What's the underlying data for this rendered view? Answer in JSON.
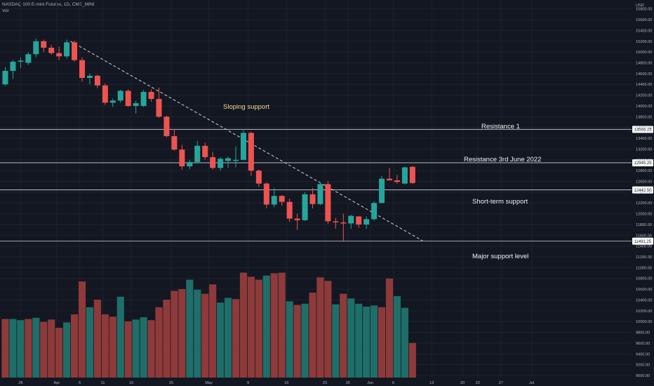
{
  "header": {
    "title": "NASDAQ 100 E-mini Futures, 1D, CME_MINI",
    "indicator": "Vol"
  },
  "axis": {
    "currency": "USD"
  },
  "chart_data": {
    "type": "candlestick",
    "title": "NASDAQ 100 E-mini Futures, 1D, CME_MINI",
    "y_unit": "USD",
    "ylim": [
      9000,
      15900
    ],
    "y_ticks": [
      9000,
      9200,
      9400,
      9600,
      9800,
      10000,
      10200,
      10400,
      10600,
      10800,
      11000,
      11200,
      11400,
      11600,
      11800,
      12000,
      12200,
      12400,
      12600,
      12800,
      13000,
      13200,
      13400,
      13600,
      13800,
      14000,
      14200,
      14400,
      14600,
      14800,
      15000,
      15200,
      15400,
      15600,
      15800
    ],
    "x_labels": [
      {
        "label": "28",
        "index": 2
      },
      {
        "label": "Apr",
        "index": 6.7
      },
      {
        "label": "6",
        "index": 9.7
      },
      {
        "label": "11",
        "index": 12.7
      },
      {
        "label": "15",
        "index": 16.4
      },
      {
        "label": "25",
        "index": 21.6
      },
      {
        "label": "May",
        "index": 26.5
      },
      {
        "label": "9",
        "index": 31.6
      },
      {
        "label": "16",
        "index": 36.6
      },
      {
        "label": "23",
        "index": 41.6
      },
      {
        "label": "26",
        "index": 44.6
      },
      {
        "label": "Jun",
        "index": 47.5
      },
      {
        "label": "6",
        "index": 50.5
      },
      {
        "label": "13",
        "index": 55.5
      },
      {
        "label": "20",
        "index": 59.5
      },
      {
        "label": "22",
        "index": 61.5
      },
      {
        "label": "27",
        "index": 64.5
      },
      {
        "label": "Jul",
        "index": 68.5
      }
    ],
    "candles": [
      {
        "o": 14400,
        "h": 14720,
        "l": 14370,
        "c": 14650
      },
      {
        "o": 14650,
        "h": 14850,
        "l": 14500,
        "c": 14820
      },
      {
        "o": 14820,
        "h": 14900,
        "l": 14700,
        "c": 14840
      },
      {
        "o": 14800,
        "h": 15000,
        "l": 14760,
        "c": 14960
      },
      {
        "o": 14960,
        "h": 15250,
        "l": 14900,
        "c": 15200
      },
      {
        "o": 15200,
        "h": 15230,
        "l": 15000,
        "c": 15080
      },
      {
        "o": 15080,
        "h": 15130,
        "l": 14950,
        "c": 14980
      },
      {
        "o": 14980,
        "h": 15100,
        "l": 14850,
        "c": 14920
      },
      {
        "o": 14920,
        "h": 15230,
        "l": 14880,
        "c": 15180
      },
      {
        "o": 15180,
        "h": 15210,
        "l": 14820,
        "c": 14850
      },
      {
        "o": 14850,
        "h": 14900,
        "l": 14450,
        "c": 14520
      },
      {
        "o": 14520,
        "h": 14600,
        "l": 14400,
        "c": 14560
      },
      {
        "o": 14560,
        "h": 14580,
        "l": 14330,
        "c": 14380
      },
      {
        "o": 14380,
        "h": 14420,
        "l": 14020,
        "c": 14060
      },
      {
        "o": 14060,
        "h": 14140,
        "l": 13980,
        "c": 14100
      },
      {
        "o": 14100,
        "h": 14300,
        "l": 14060,
        "c": 14280
      },
      {
        "o": 14280,
        "h": 14310,
        "l": 13980,
        "c": 14000
      },
      {
        "o": 14000,
        "h": 14100,
        "l": 13860,
        "c": 14050
      },
      {
        "o": 14000,
        "h": 14300,
        "l": 13980,
        "c": 14260
      },
      {
        "o": 14260,
        "h": 14310,
        "l": 14080,
        "c": 14130
      },
      {
        "o": 14130,
        "h": 14340,
        "l": 13780,
        "c": 13800
      },
      {
        "o": 13800,
        "h": 13820,
        "l": 13420,
        "c": 13440
      },
      {
        "o": 13440,
        "h": 13570,
        "l": 13170,
        "c": 13190
      },
      {
        "o": 13190,
        "h": 13280,
        "l": 12820,
        "c": 12880
      },
      {
        "o": 12880,
        "h": 13000,
        "l": 12830,
        "c": 12960
      },
      {
        "o": 12960,
        "h": 13350,
        "l": 12940,
        "c": 13260
      },
      {
        "o": 13260,
        "h": 13320,
        "l": 13000,
        "c": 13050
      },
      {
        "o": 13050,
        "h": 13150,
        "l": 12820,
        "c": 12850
      },
      {
        "o": 12850,
        "h": 13050,
        "l": 12800,
        "c": 13020
      },
      {
        "o": 12980,
        "h": 13060,
        "l": 12850,
        "c": 13030
      },
      {
        "o": 12980,
        "h": 13250,
        "l": 12860,
        "c": 13000
      },
      {
        "o": 13000,
        "h": 13550,
        "l": 12990,
        "c": 13500
      },
      {
        "o": 13500,
        "h": 13520,
        "l": 12700,
        "c": 12800
      },
      {
        "o": 12800,
        "h": 12820,
        "l": 12500,
        "c": 12560
      },
      {
        "o": 12560,
        "h": 12580,
        "l": 12100,
        "c": 12170
      },
      {
        "o": 12170,
        "h": 12480,
        "l": 12120,
        "c": 12330
      },
      {
        "o": 12330,
        "h": 12350,
        "l": 12150,
        "c": 12220
      },
      {
        "o": 12220,
        "h": 12280,
        "l": 11850,
        "c": 11910
      },
      {
        "o": 11910,
        "h": 12000,
        "l": 11700,
        "c": 11880
      },
      {
        "o": 11880,
        "h": 12400,
        "l": 11870,
        "c": 12360
      },
      {
        "o": 12360,
        "h": 12480,
        "l": 12100,
        "c": 12180
      },
      {
        "o": 12180,
        "h": 12580,
        "l": 12160,
        "c": 12550
      },
      {
        "o": 12550,
        "h": 12600,
        "l": 11810,
        "c": 11860
      },
      {
        "o": 11860,
        "h": 11920,
        "l": 11720,
        "c": 11840
      },
      {
        "o": 11840,
        "h": 12000,
        "l": 11480,
        "c": 11820
      },
      {
        "o": 11820,
        "h": 11980,
        "l": 11720,
        "c": 11960
      },
      {
        "o": 11950,
        "h": 11960,
        "l": 11740,
        "c": 11800
      },
      {
        "o": 11800,
        "h": 11950,
        "l": 11720,
        "c": 11900
      },
      {
        "o": 11900,
        "h": 12230,
        "l": 11870,
        "c": 12200
      },
      {
        "o": 12200,
        "h": 12700,
        "l": 12190,
        "c": 12650
      },
      {
        "o": 12650,
        "h": 12850,
        "l": 12620,
        "c": 12620
      },
      {
        "o": 12620,
        "h": 12720,
        "l": 12560,
        "c": 12590
      },
      {
        "o": 12560,
        "h": 12880,
        "l": 12540,
        "c": 12860
      },
      {
        "o": 12870,
        "h": 12890,
        "l": 12550,
        "c": 12570
      }
    ],
    "volume_bars": [
      {
        "v": 10000,
        "up": false
      },
      {
        "v": 10000,
        "up": true
      },
      {
        "v": 9980,
        "up": true
      },
      {
        "v": 10000,
        "up": false
      },
      {
        "v": 10020,
        "up": true
      },
      {
        "v": 9950,
        "up": false
      },
      {
        "v": 9990,
        "up": false
      },
      {
        "v": 9850,
        "up": false
      },
      {
        "v": 9940,
        "up": true
      },
      {
        "v": 10080,
        "up": false
      },
      {
        "v": 10640,
        "up": false
      },
      {
        "v": 10200,
        "up": true
      },
      {
        "v": 10330,
        "up": false
      },
      {
        "v": 10080,
        "up": false
      },
      {
        "v": 10040,
        "up": false
      },
      {
        "v": 10380,
        "up": true
      },
      {
        "v": 9960,
        "up": false
      },
      {
        "v": 9990,
        "up": true
      },
      {
        "v": 10030,
        "up": true
      },
      {
        "v": 9980,
        "up": false
      },
      {
        "v": 10200,
        "up": false
      },
      {
        "v": 10330,
        "up": false
      },
      {
        "v": 10480,
        "up": false
      },
      {
        "v": 10510,
        "up": false
      },
      {
        "v": 10670,
        "up": true
      },
      {
        "v": 10500,
        "up": true
      },
      {
        "v": 10430,
        "up": false
      },
      {
        "v": 10590,
        "up": false
      },
      {
        "v": 10280,
        "up": true
      },
      {
        "v": 10360,
        "up": true
      },
      {
        "v": 10340,
        "up": false
      },
      {
        "v": 10790,
        "up": false
      },
      {
        "v": 10720,
        "up": false
      },
      {
        "v": 10670,
        "up": false
      },
      {
        "v": 10740,
        "up": true
      },
      {
        "v": 10780,
        "up": false
      },
      {
        "v": 10790,
        "up": false
      },
      {
        "v": 10300,
        "up": true
      },
      {
        "v": 10240,
        "up": false
      },
      {
        "v": 10260,
        "up": true
      },
      {
        "v": 10450,
        "up": false
      },
      {
        "v": 10710,
        "up": false
      },
      {
        "v": 10650,
        "up": false
      },
      {
        "v": 10250,
        "up": true
      },
      {
        "v": 10430,
        "up": false
      },
      {
        "v": 10350,
        "up": true
      },
      {
        "v": 10260,
        "up": true
      },
      {
        "v": 10210,
        "up": true
      },
      {
        "v": 10230,
        "up": true
      },
      {
        "v": 10200,
        "up": false
      },
      {
        "v": 10690,
        "up": false
      },
      {
        "v": 10390,
        "up": true
      },
      {
        "v": 10190,
        "up": true
      },
      {
        "v": 9590,
        "up": false
      }
    ],
    "horizontal_levels": [
      {
        "name": "Resistance 1",
        "value": 13565.25,
        "label": "13565.25"
      },
      {
        "name": "Resistance 3rd June 2022",
        "value": 12945.25,
        "label": "12945.25"
      },
      {
        "name": "Short-term support",
        "value": 12442.5,
        "label": "12442.50"
      },
      {
        "name": "Major support level",
        "value": 11491.25,
        "label": "11491.25"
      }
    ],
    "trendline": {
      "name": "Sloping support",
      "start": {
        "index": 8.5,
        "price": 15200
      },
      "end": {
        "index": 54.3,
        "price": 11500
      },
      "style": "dashed"
    },
    "colors": {
      "up": "#26a69a",
      "down": "#ef5350",
      "volume_up": "#1f6e69",
      "volume_down": "#8e3a3a",
      "background": "#131722",
      "level_line": "#d1d4dc",
      "trendline": "#d1d4dc",
      "annotation_trend": "#f2d98c"
    }
  }
}
